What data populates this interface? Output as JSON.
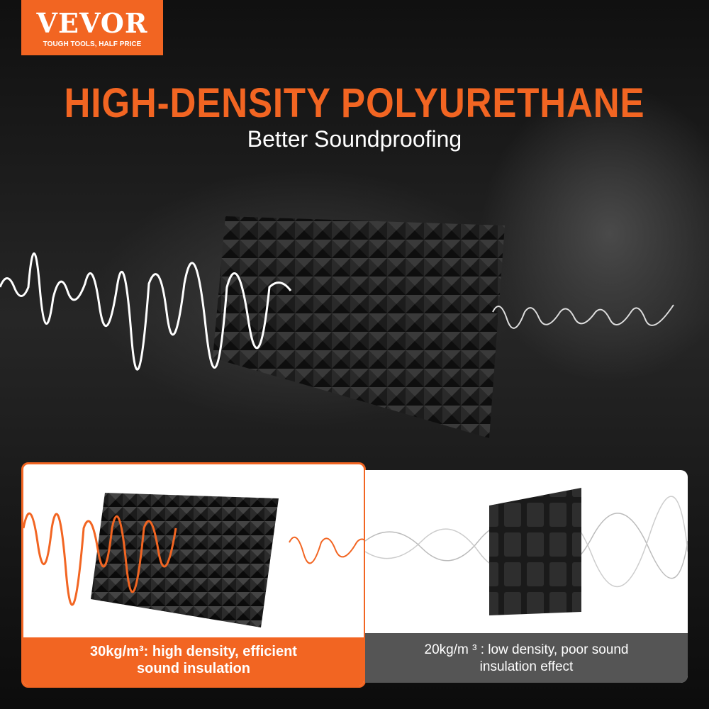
{
  "logo": {
    "brand": "VEVOR",
    "tagline": "TOUGH TOOLS, HALF PRICE"
  },
  "headline": "HIGH-DENSITY POLYURETHANE",
  "subheadline": "Better Soundproofing",
  "comparison": {
    "high": {
      "line1": "30kg/m³:  high density,  efficient",
      "line2": "sound insulation"
    },
    "low": {
      "line1": "20kg/m ³ :  low density,  poor sound",
      "line2": "insulation effect"
    }
  },
  "colors": {
    "brand": "#f26522",
    "low_caption_bg": "#555555"
  }
}
